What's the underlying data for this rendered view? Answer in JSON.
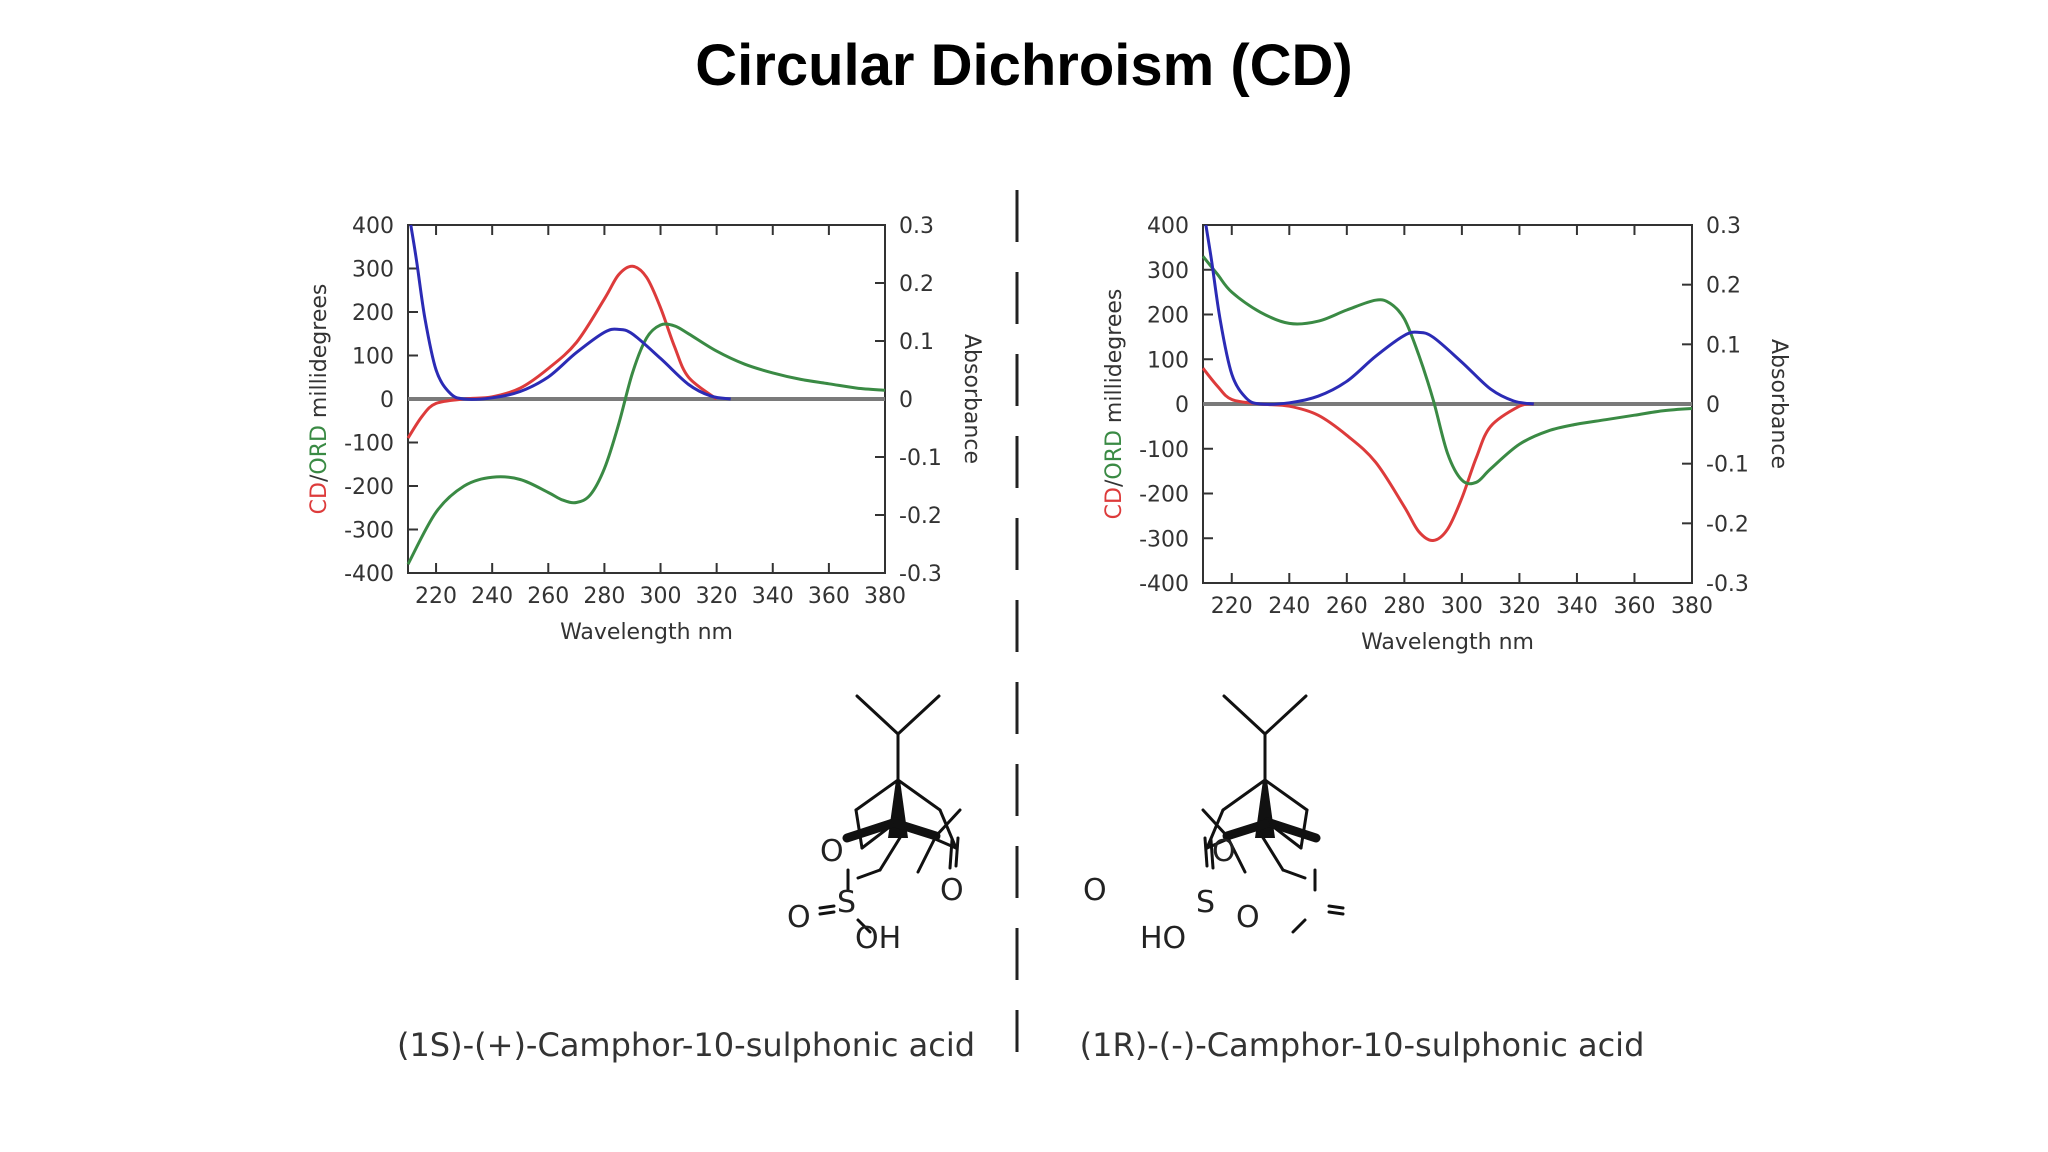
{
  "slide": {
    "title": "Circular Dichroism (CD)"
  },
  "colors": {
    "cd": "#dd3b3b",
    "ord": "#3a8a44",
    "absorbance": "#2b2bb5",
    "axis": "#333333",
    "baseline": "#7a7a7a",
    "divider": "#222222"
  },
  "chart_data": [
    {
      "type": "line",
      "xlabel": "Wavelength nm",
      "ylabel_parts": [
        "CD",
        "/",
        "ORD",
        " millidegrees"
      ],
      "ylabel2": "Absorbance",
      "xlim": [
        210,
        380
      ],
      "ylim": [
        -400,
        400
      ],
      "y2lim": [
        -0.3,
        0.3
      ],
      "x_ticks": [
        "220",
        "240",
        "260",
        "280",
        "300",
        "320",
        "340",
        "360",
        "380"
      ],
      "y_ticks": [
        "400",
        "300",
        "200",
        "100",
        "0",
        "-100",
        "-200",
        "-300",
        "-400"
      ],
      "y2_ticks": [
        "0.3",
        "0.2",
        "0.1",
        "0",
        "-0.1",
        "-0.2",
        "-0.3"
      ],
      "series": [
        {
          "key": "cd",
          "axis": "left",
          "x": [
            210,
            215,
            220,
            230,
            240,
            250,
            260,
            270,
            280,
            285,
            290,
            295,
            300,
            305,
            310,
            320
          ],
          "y": [
            -90,
            -40,
            -10,
            0,
            5,
            25,
            70,
            130,
            230,
            285,
            305,
            280,
            210,
            120,
            50,
            0
          ]
        },
        {
          "key": "ord",
          "axis": "left",
          "x": [
            210,
            220,
            230,
            240,
            250,
            260,
            265,
            270,
            275,
            280,
            285,
            290,
            295,
            300,
            305,
            310,
            320,
            330,
            340,
            350,
            360,
            370,
            380
          ],
          "y": [
            -380,
            -260,
            -200,
            -180,
            -185,
            -215,
            -232,
            -238,
            -220,
            -160,
            -60,
            60,
            140,
            170,
            168,
            150,
            110,
            80,
            60,
            45,
            35,
            25,
            20
          ]
        },
        {
          "key": "absorbance",
          "axis": "right",
          "x": [
            211,
            213,
            216,
            220,
            225,
            230,
            240,
            250,
            260,
            270,
            280,
            285,
            290,
            300,
            310,
            318,
            325
          ],
          "y": [
            0.3,
            0.24,
            0.14,
            0.05,
            0.01,
            0.0,
            0.002,
            0.013,
            0.038,
            0.08,
            0.115,
            0.12,
            0.112,
            0.07,
            0.025,
            0.005,
            0.0
          ]
        }
      ]
    },
    {
      "type": "line",
      "xlabel": "Wavelength nm",
      "ylabel_parts": [
        "CD",
        "/",
        "ORD",
        " millidegrees"
      ],
      "ylabel2": "Absorbance",
      "xlim": [
        210,
        380
      ],
      "ylim": [
        -400,
        400
      ],
      "y2lim": [
        -0.3,
        0.3
      ],
      "x_ticks": [
        "220",
        "240",
        "260",
        "280",
        "300",
        "320",
        "340",
        "360",
        "380"
      ],
      "y_ticks": [
        "400",
        "300",
        "200",
        "100",
        "0",
        "-100",
        "-200",
        "-300",
        "-400"
      ],
      "y2_ticks": [
        "0.3",
        "0.2",
        "0.1",
        "0",
        "-0.1",
        "-0.2",
        "-0.3"
      ],
      "series": [
        {
          "key": "cd",
          "axis": "left",
          "x": [
            210,
            215,
            220,
            230,
            240,
            250,
            260,
            270,
            280,
            285,
            290,
            295,
            300,
            305,
            310,
            320,
            325
          ],
          "y": [
            80,
            40,
            10,
            0,
            -5,
            -25,
            -70,
            -130,
            -230,
            -285,
            -305,
            -280,
            -210,
            -120,
            -50,
            -5,
            0
          ]
        },
        {
          "key": "ord",
          "axis": "left",
          "x": [
            210,
            215,
            220,
            230,
            240,
            250,
            260,
            270,
            275,
            280,
            285,
            290,
            295,
            300,
            305,
            310,
            320,
            330,
            340,
            350,
            360,
            370,
            380
          ],
          "y": [
            330,
            290,
            250,
            205,
            180,
            185,
            210,
            232,
            225,
            190,
            110,
            10,
            -110,
            -170,
            -175,
            -145,
            -90,
            -60,
            -45,
            -35,
            -25,
            -15,
            -10
          ]
        },
        {
          "key": "absorbance",
          "axis": "right",
          "x": [
            211,
            213,
            216,
            220,
            225,
            230,
            240,
            250,
            260,
            270,
            280,
            285,
            290,
            300,
            310,
            318,
            325
          ],
          "y": [
            0.3,
            0.24,
            0.14,
            0.05,
            0.01,
            0.0,
            0.002,
            0.013,
            0.038,
            0.08,
            0.115,
            0.12,
            0.112,
            0.07,
            0.025,
            0.005,
            0.0
          ]
        }
      ]
    }
  ],
  "molecules": [
    {
      "atoms": {
        "o_ring": "O",
        "s": "S",
        "o_left": "O",
        "oh": "OH",
        "ketone_o": "O"
      },
      "caption": "(1S)-(+)-Camphor-10-sulphonic acid"
    },
    {
      "atoms": {
        "o_ring": "O",
        "s": "S",
        "o_right": "O",
        "oh": "HO",
        "ketone_o": "O"
      },
      "caption": "(1R)-(-)-Camphor-10-sulphonic acid"
    }
  ]
}
